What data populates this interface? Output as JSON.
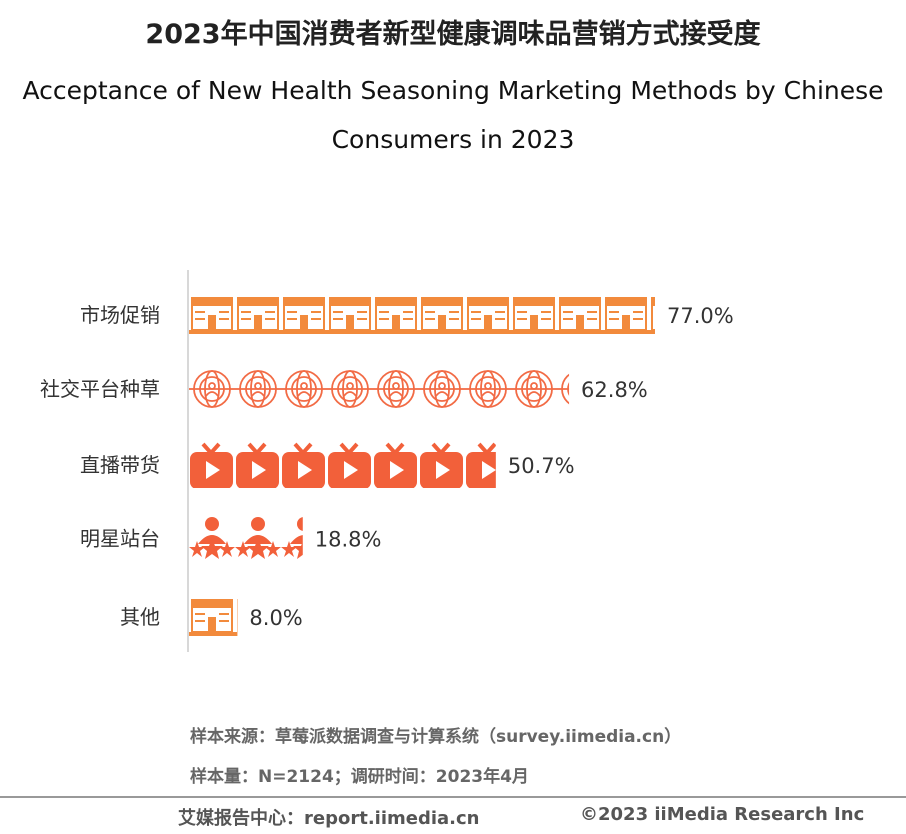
{
  "title_cn": "2023年中国消费者新型健康调味品营销方式接受度",
  "title_en": "Acceptance of New Health Seasoning Marketing Methods by Chinese Consumers in 2023",
  "chart_data": {
    "type": "bar",
    "orientation": "horizontal",
    "style": "pictogram",
    "categories": [
      "市场促销",
      "社交平台种草",
      "直播带货",
      "明星站台",
      "其他"
    ],
    "values": [
      77.0,
      62.8,
      50.7,
      18.8,
      8.0
    ],
    "value_labels": [
      "77.0%",
      "62.8%",
      "50.7%",
      "18.8%",
      "8.0%"
    ],
    "icons": [
      "supermarket-icon",
      "globe-user-icon",
      "live-tv-icon",
      "star-person-icon",
      "supermarket-icon"
    ],
    "xlim": [
      0,
      100
    ],
    "color": "#f26b35",
    "grid": false
  },
  "source_line1": "样本来源：草莓派数据调查与计算系统（survey.iimedia.cn）",
  "source_line2": "样本量：N=2124；调研时间：2023年4月",
  "footer": {
    "left": "艾媒报告中心：report.iimedia.cn",
    "right": "©2023  iiMedia Research  Inc"
  }
}
